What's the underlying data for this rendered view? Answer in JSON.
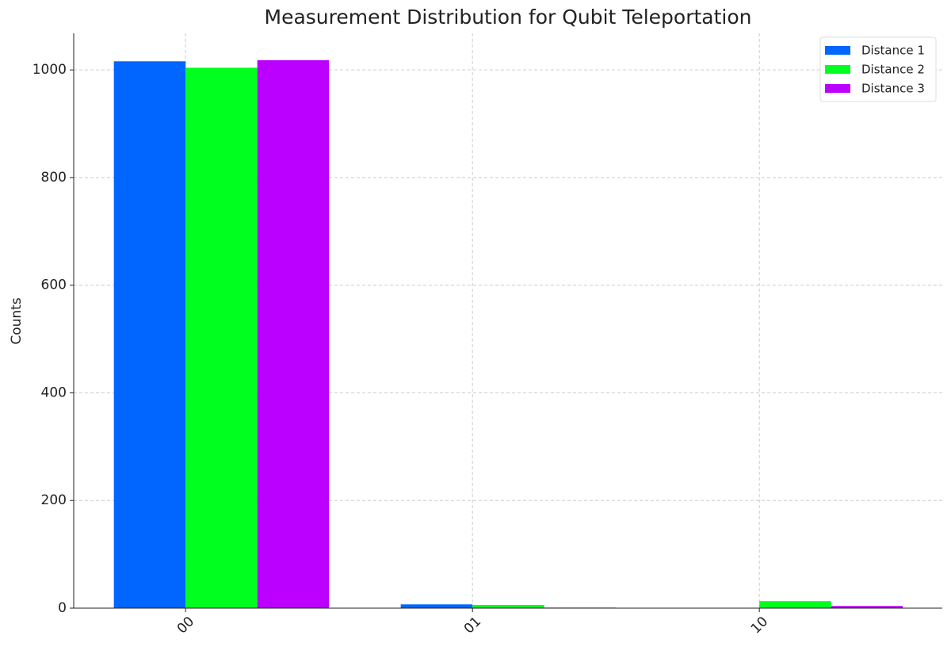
{
  "chart_data": {
    "type": "bar",
    "title": "Measurement Distribution for Qubit Teleportation",
    "y_label": "Counts",
    "categories": [
      "00",
      "01",
      "10"
    ],
    "series": [
      {
        "name": "Distance 1",
        "color": "#0066ff",
        "values": [
          1016,
          7,
          0
        ]
      },
      {
        "name": "Distance 2",
        "color": "#00ff1e",
        "values": [
          1004,
          6,
          13
        ]
      },
      {
        "name": "Distance 3",
        "color": "#bb00ff",
        "values": [
          1018,
          1,
          4
        ]
      }
    ],
    "ylim": [
      0,
      1068
    ],
    "yticks": [
      0,
      200,
      400,
      600,
      800,
      1000
    ],
    "grid": true,
    "legend": "upper right"
  }
}
